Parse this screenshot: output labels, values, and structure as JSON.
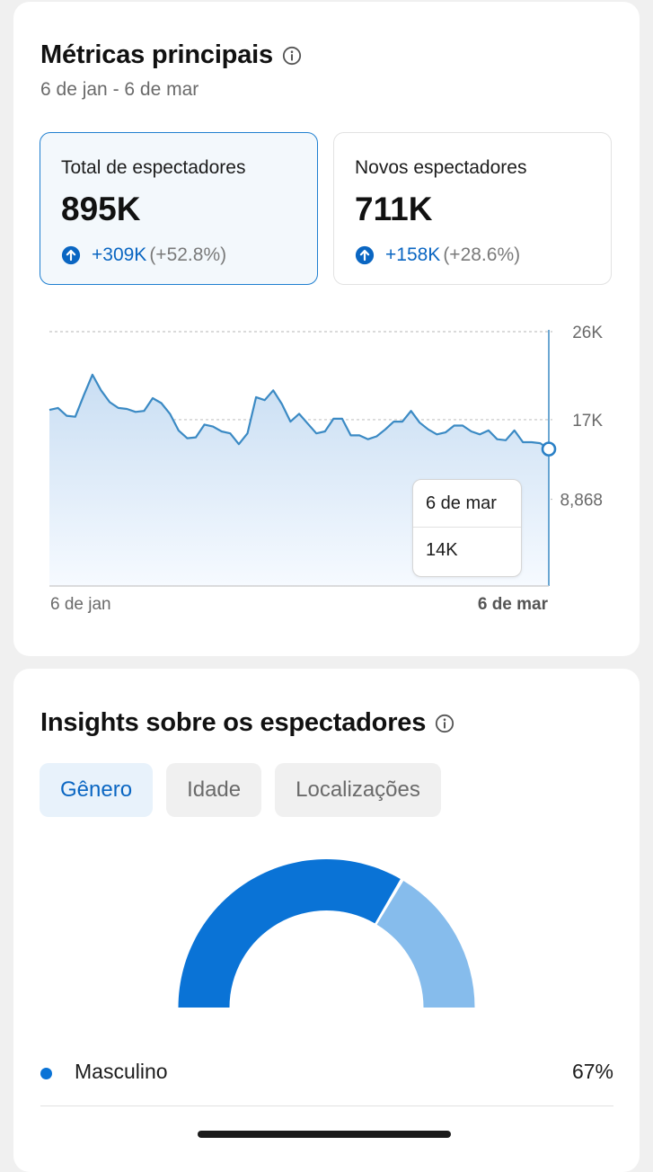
{
  "metrics_card": {
    "title": "Métricas principais",
    "date_range": "6 de jan - 6 de mar",
    "metrics": [
      {
        "label": "Total de espectadores",
        "value": "895K",
        "change_abs": "+309K",
        "change_pct": "(+52.8%)",
        "selected": true
      },
      {
        "label": "Novos espectadores",
        "value": "711K",
        "change_abs": "+158K",
        "change_pct": "(+28.6%)",
        "selected": false
      }
    ],
    "tooltip": {
      "date": "6 de mar",
      "value": "14K"
    }
  },
  "chart_data": {
    "type": "area",
    "x_start_label": "6 de jan",
    "x_end_label": "6 de mar",
    "y_tick_labels": [
      "26K",
      "17K",
      "8,868"
    ],
    "y_ticks": [
      26000,
      17000,
      8868
    ],
    "ylim": [
      0,
      26000
    ],
    "grid": true,
    "values": [
      18000,
      18200,
      17400,
      17300,
      19500,
      21600,
      20000,
      18800,
      18200,
      18100,
      17800,
      17900,
      19200,
      18700,
      17600,
      15900,
      15100,
      15200,
      16500,
      16300,
      15800,
      15600,
      14500,
      15600,
      19300,
      19000,
      20000,
      18600,
      16800,
      17600,
      16600,
      15600,
      15800,
      17100,
      17100,
      15400,
      15400,
      15000,
      15300,
      16000,
      16800,
      16800,
      17900,
      16700,
      16000,
      15500,
      15700,
      16400,
      16400,
      15800,
      15500,
      15900,
      15000,
      14900,
      15900,
      14700,
      14700,
      14600,
      14000
    ]
  },
  "insights_card": {
    "title": "Insights sobre os espectadores",
    "tabs": [
      "Gênero",
      "Idade",
      "Localizações"
    ],
    "active_tab": "Gênero"
  },
  "gauge_data": {
    "type": "pie",
    "segments": [
      {
        "label": "Masculino",
        "value": 67,
        "color": "#0a73d6"
      },
      {
        "value": 33,
        "color": "#86bcec"
      }
    ]
  },
  "legend": [
    {
      "label": "Masculino",
      "value": "67%",
      "color": "#0a73d6"
    }
  ],
  "colors": {
    "accent": "#0a66c2",
    "line": "#3b8ac4"
  }
}
